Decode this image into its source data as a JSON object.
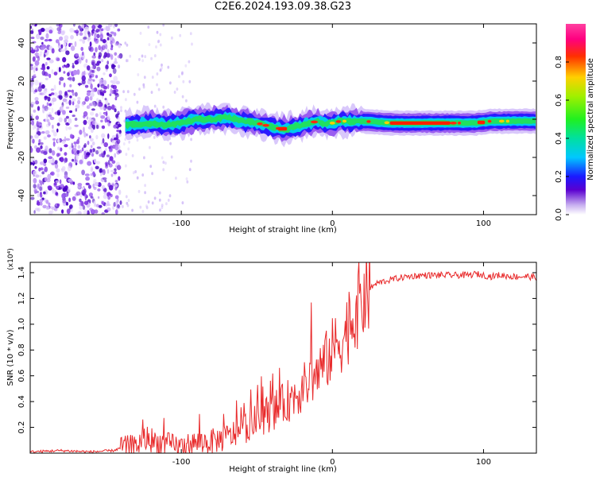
{
  "title": "C2E6.2024.193.09.38.G23",
  "chart_data": [
    {
      "type": "heatmap",
      "title": "C2E6.2024.193.09.38.G23",
      "xlabel": "Height of straight line (km)",
      "ylabel": "Frequency (Hz)",
      "xlim": [
        -200,
        135
      ],
      "ylim": [
        -50,
        50
      ],
      "x_ticks": [
        -100,
        0,
        100
      ],
      "y_ticks": [
        -40,
        -20,
        0,
        20,
        40
      ],
      "colorbar": {
        "label": "Normalized spectral amplitude",
        "range": [
          0,
          1
        ],
        "ticks": [
          "0.0",
          "0.2",
          "0.4",
          "0.6",
          "0.8"
        ]
      },
      "ridge": {
        "x": [
          -137,
          -130,
          -120,
          -110,
          -100,
          -90,
          -80,
          -70,
          -60,
          -50,
          -40,
          -35,
          -30,
          -25,
          -20,
          -15,
          -10,
          -5,
          0,
          5,
          10,
          20,
          40,
          60,
          80,
          95,
          105,
          120,
          135
        ],
        "y": [
          -3,
          -3,
          -2,
          -3,
          -2,
          0,
          0,
          1,
          -1,
          -2,
          -4,
          -5,
          -5,
          -4,
          -3,
          -2,
          -1,
          -2,
          -2,
          -1,
          -1,
          -1,
          -2,
          -2,
          -2,
          -2,
          -1,
          -1,
          -1
        ]
      },
      "noise_region_x": [
        -200,
        -140
      ]
    },
    {
      "type": "line",
      "xlabel": "Height of straight line (km)",
      "ylabel": "SNR (10 * v/v)",
      "y_multiplier": "(x10⁴)",
      "xlim": [
        -200,
        135
      ],
      "ylim": [
        0,
        1.48
      ],
      "x_ticks": [
        -100,
        0,
        100
      ],
      "y_ticks": [
        0.2,
        0.4,
        0.6,
        0.8,
        1.0,
        1.2,
        1.4
      ],
      "color": "#e8292a",
      "series": [
        {
          "x": [
            -200,
            -180,
            -160,
            -145,
            -140,
            -130,
            -122,
            -118,
            -110,
            -100,
            -90,
            -80,
            -70,
            -65,
            -60,
            -55,
            -50,
            -45,
            -40,
            -35,
            -30,
            -25,
            -20,
            -15,
            -10,
            -5,
            0,
            5,
            8,
            10,
            15,
            20,
            25,
            30,
            40,
            50,
            60,
            70,
            80,
            90,
            95,
            100,
            105,
            110,
            120,
            130,
            135
          ],
          "y": [
            0.01,
            0.02,
            0.01,
            0.02,
            0.04,
            0.06,
            0.12,
            0.09,
            0.07,
            0.05,
            0.08,
            0.09,
            0.12,
            0.15,
            0.18,
            0.22,
            0.25,
            0.29,
            0.32,
            0.36,
            0.4,
            0.45,
            0.5,
            0.56,
            0.62,
            0.7,
            0.8,
            0.88,
            0.9,
            0.97,
            1.1,
            1.2,
            1.28,
            1.32,
            1.35,
            1.37,
            1.38,
            1.38,
            1.38,
            1.38,
            1.39,
            1.38,
            1.37,
            1.38,
            1.37,
            1.37,
            1.36
          ]
        }
      ]
    }
  ],
  "colors": {
    "axis": "#000000",
    "line": "#e8292a"
  }
}
